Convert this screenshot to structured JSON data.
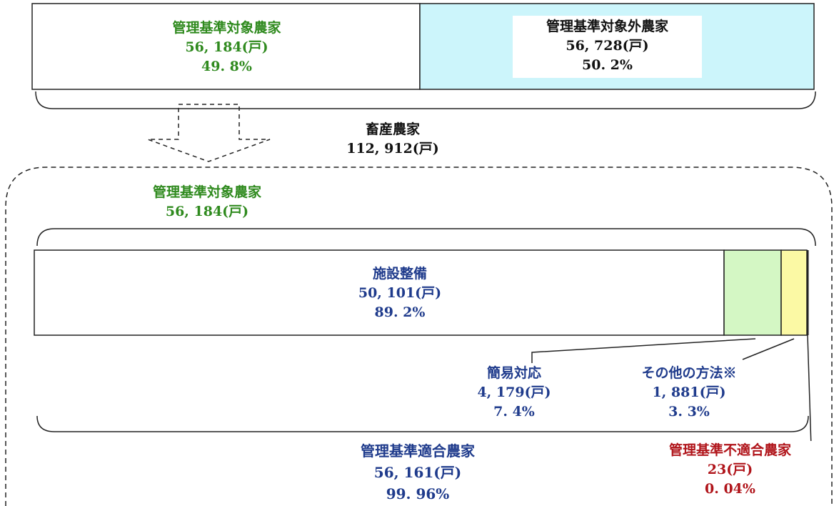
{
  "top": {
    "target": {
      "title": "管理基準対象農家",
      "count": "56, 184(戸)",
      "pct": "49. 8%"
    },
    "non_target": {
      "title": "管理基準対象外農家",
      "count": "56, 728(戸)",
      "pct": "50. 2%"
    },
    "total": {
      "title": "畜産農家",
      "count": "112, 912(戸)"
    }
  },
  "detail": {
    "target": {
      "title": "管理基準対象農家",
      "count": "56, 184(戸)"
    },
    "facility": {
      "title": "施設整備",
      "count": "50, 101(戸)",
      "pct": "89. 2%"
    },
    "simple": {
      "title": "簡易対応",
      "count": "4, 179(戸)",
      "pct": "7. 4%"
    },
    "other": {
      "title": "その他の方法※",
      "count": "1, 881(戸)",
      "pct": "3. 3%"
    },
    "compliant": {
      "title": "管理基準適合農家",
      "count": "56, 161(戸)",
      "pct": "99. 96%"
    },
    "noncompliant": {
      "title": "管理基準不適合農家",
      "count": "23(戸)",
      "pct": "0. 04%"
    }
  },
  "colors": {
    "non_target_fill": "#ccf5fb",
    "simple_fill": "#d4f7c4",
    "other_fill": "#fbf9a4",
    "green_text": "#2f8a1e",
    "blue_text": "#1f3b8c",
    "red_text": "#b0141a"
  }
}
